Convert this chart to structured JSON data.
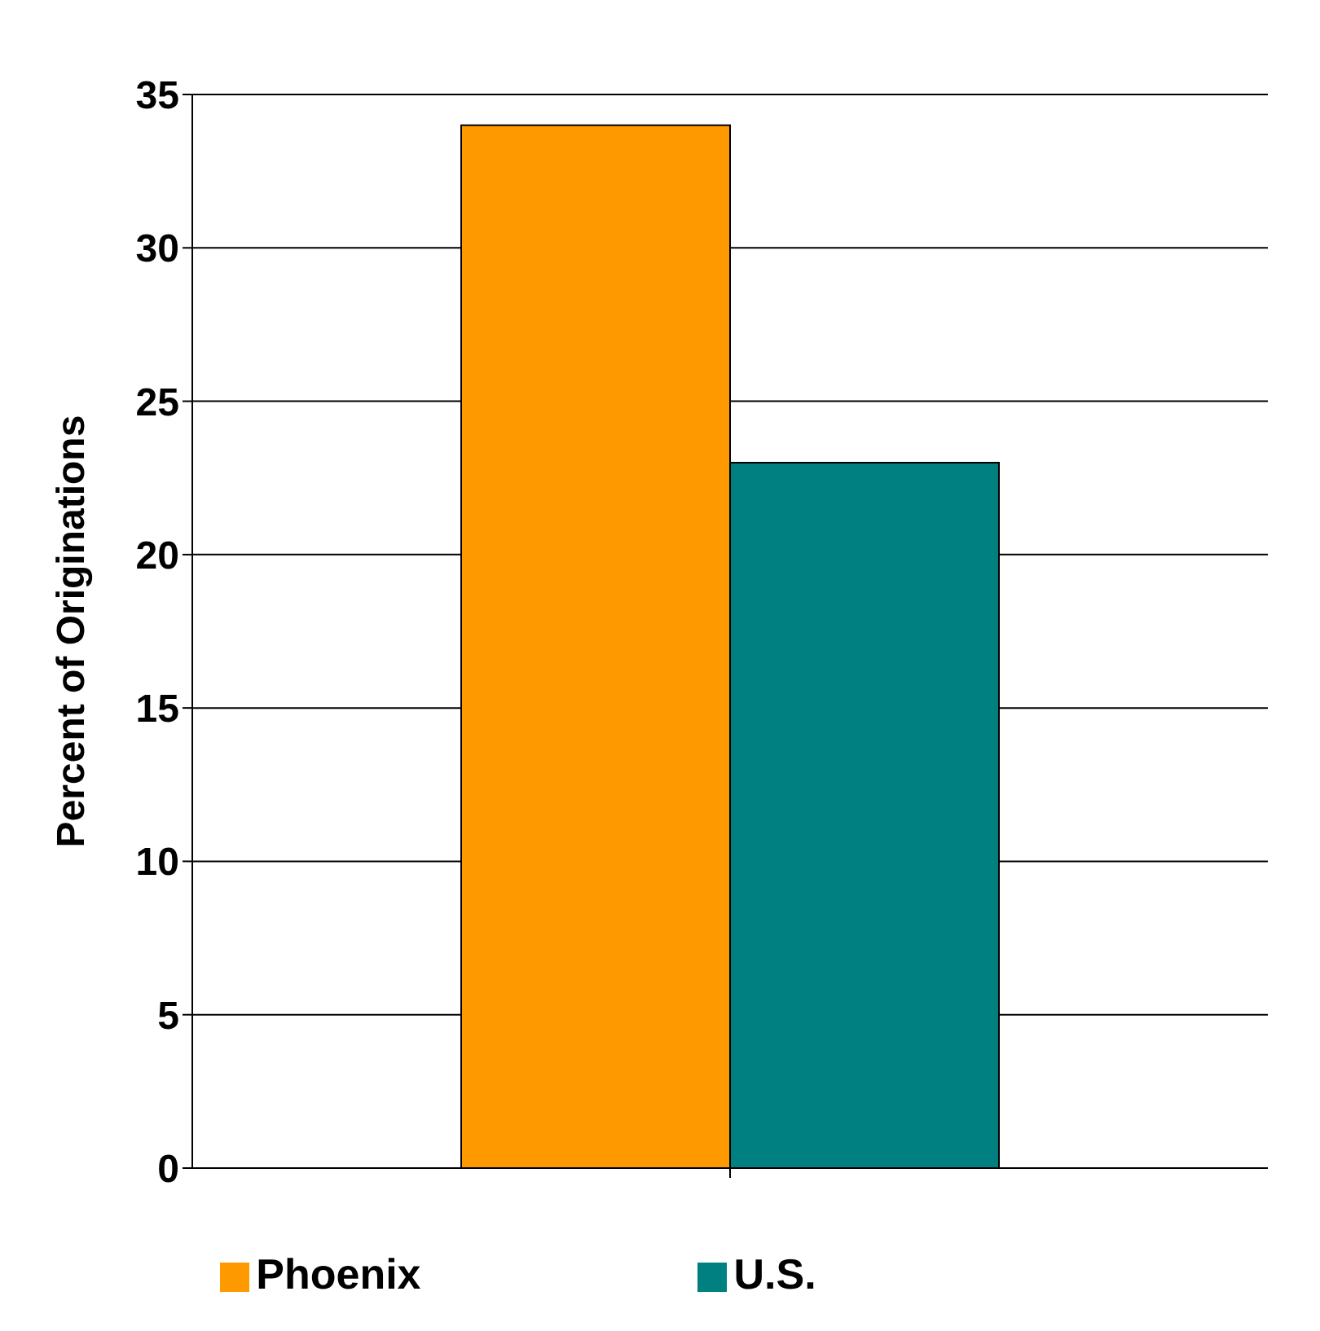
{
  "chart_data": {
    "type": "bar",
    "ylabel": "Percent of Originations",
    "categories": [
      null
    ],
    "series": [
      {
        "name": "Phoenix",
        "color": "#ff9900",
        "values": [
          34
        ]
      },
      {
        "name": "U.S.",
        "color": "#008080",
        "values": [
          23
        ]
      }
    ],
    "ylim": [
      0,
      35
    ],
    "yticks": [
      0,
      5,
      10,
      15,
      20,
      25,
      30,
      35
    ],
    "grid": "y",
    "legend": "bottom"
  }
}
